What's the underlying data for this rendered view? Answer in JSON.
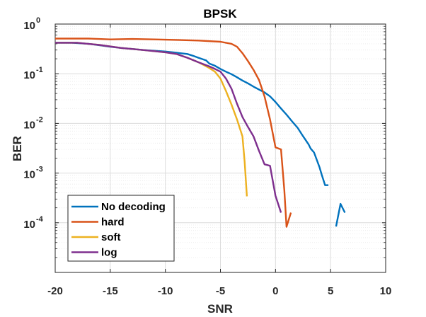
{
  "chart_data": {
    "type": "line",
    "title": "BPSK",
    "xlabel": "SNR",
    "ylabel": "BER",
    "xscale": "linear",
    "yscale": "log",
    "xlim": [
      -20,
      10
    ],
    "ylim": [
      1e-05,
      1
    ],
    "grid": true,
    "minor_grid": true,
    "legend_position": "bottom-left",
    "x_ticks": [
      -20,
      -15,
      -10,
      -5,
      0,
      5,
      10
    ],
    "x_tick_labels": [
      "-20",
      "-15",
      "-10",
      "-5",
      "0",
      "5",
      "10"
    ],
    "y_ticks": [
      0.0001,
      0.001,
      0.01,
      0.1,
      1
    ],
    "y_tick_labels": [
      {
        "base": "10",
        "exp": "-4"
      },
      {
        "base": "10",
        "exp": "-3"
      },
      {
        "base": "10",
        "exp": "-2"
      },
      {
        "base": "10",
        "exp": "-1"
      },
      {
        "base": "10",
        "exp": "0"
      }
    ],
    "series": [
      {
        "name": "No decoding",
        "color": "#0072BD",
        "segments": [
          [
            [
              -20,
              0.42
            ],
            [
              -18.5,
              0.42
            ],
            [
              -17,
              0.4
            ],
            [
              -16,
              0.375
            ],
            [
              -15,
              0.35
            ],
            [
              -14,
              0.33
            ],
            [
              -13,
              0.315
            ],
            [
              -12,
              0.3
            ],
            [
              -11,
              0.29
            ],
            [
              -10,
              0.28
            ],
            [
              -9,
              0.265
            ],
            [
              -8,
              0.25
            ],
            [
              -7.5,
              0.23
            ],
            [
              -7,
              0.21
            ],
            [
              -6.3,
              0.185
            ],
            [
              -6,
              0.16
            ],
            [
              -5.5,
              0.145
            ],
            [
              -5,
              0.125
            ],
            [
              -4.5,
              0.11
            ],
            [
              -4,
              0.098
            ],
            [
              -3.5,
              0.085
            ],
            [
              -3,
              0.073
            ],
            [
              -2.5,
              0.064
            ],
            [
              -2,
              0.055
            ],
            [
              -1.5,
              0.048
            ],
            [
              -1,
              0.042
            ],
            [
              -0.5,
              0.035
            ],
            [
              0,
              0.027
            ],
            [
              0.5,
              0.02
            ],
            [
              1,
              0.015
            ],
            [
              1.5,
              0.011
            ],
            [
              2,
              0.0082
            ],
            [
              2.5,
              0.0055
            ],
            [
              3,
              0.0038
            ],
            [
              3.2,
              0.0031
            ],
            [
              3.5,
              0.0026
            ],
            [
              4,
              0.0013
            ],
            [
              4.2,
              0.00092
            ],
            [
              4.5,
              0.00057
            ],
            [
              4.8,
              0.00057
            ]
          ],
          [
            [
              5.5,
              8.4e-05
            ],
            [
              5.9,
              0.00024
            ],
            [
              6.3,
              0.00016
            ]
          ]
        ]
      },
      {
        "name": "hard",
        "color": "#D95319",
        "segments": [
          [
            [
              -20,
              0.51
            ],
            [
              -18,
              0.51
            ],
            [
              -17,
              0.51
            ],
            [
              -15,
              0.49
            ],
            [
              -13,
              0.5
            ],
            [
              -11,
              0.49
            ],
            [
              -9,
              0.48
            ],
            [
              -7,
              0.465
            ],
            [
              -5,
              0.44
            ],
            [
              -4,
              0.4
            ],
            [
              -3.5,
              0.35
            ],
            [
              -3,
              0.26
            ],
            [
              -2.5,
              0.18
            ],
            [
              -2,
              0.12
            ],
            [
              -1.5,
              0.075
            ],
            [
              -1,
              0.035
            ],
            [
              -0.5,
              0.012
            ],
            [
              0,
              0.0033
            ],
            [
              0.5,
              0.003
            ],
            [
              0.8,
              0.00045
            ],
            [
              1,
              8.3e-05
            ],
            [
              1.4,
              0.00016
            ]
          ]
        ]
      },
      {
        "name": "soft",
        "color": "#EDB120",
        "segments": [
          [
            [
              -20,
              0.42
            ],
            [
              -18,
              0.42
            ],
            [
              -16,
              0.38
            ],
            [
              -14,
              0.33
            ],
            [
              -12,
              0.3
            ],
            [
              -10,
              0.27
            ],
            [
              -9,
              0.25
            ],
            [
              -8,
              0.21
            ],
            [
              -7,
              0.17
            ],
            [
              -6,
              0.13
            ],
            [
              -5.5,
              0.11
            ],
            [
              -5,
              0.08
            ],
            [
              -4.5,
              0.045
            ],
            [
              -4,
              0.024
            ],
            [
              -3.5,
              0.012
            ],
            [
              -3,
              0.0055
            ],
            [
              -2.8,
              0.0017
            ],
            [
              -2.6,
              0.00034
            ]
          ]
        ]
      },
      {
        "name": "log",
        "color": "#7E2F8E",
        "segments": [
          [
            [
              -20,
              0.42
            ],
            [
              -18,
              0.42
            ],
            [
              -16,
              0.38
            ],
            [
              -14,
              0.33
            ],
            [
              -12,
              0.3
            ],
            [
              -10,
              0.27
            ],
            [
              -9,
              0.25
            ],
            [
              -8,
              0.21
            ],
            [
              -7,
              0.17
            ],
            [
              -6,
              0.14
            ],
            [
              -5.5,
              0.125
            ],
            [
              -5,
              0.11
            ],
            [
              -4.5,
              0.08
            ],
            [
              -4,
              0.05
            ],
            [
              -3.5,
              0.025
            ],
            [
              -3,
              0.0135
            ],
            [
              -2.5,
              0.0085
            ],
            [
              -2,
              0.0055
            ],
            [
              -1.5,
              0.0028
            ],
            [
              -1,
              0.0015
            ],
            [
              -0.5,
              0.0014
            ],
            [
              0,
              0.00035
            ],
            [
              0.5,
              0.00016
            ]
          ]
        ]
      }
    ]
  }
}
